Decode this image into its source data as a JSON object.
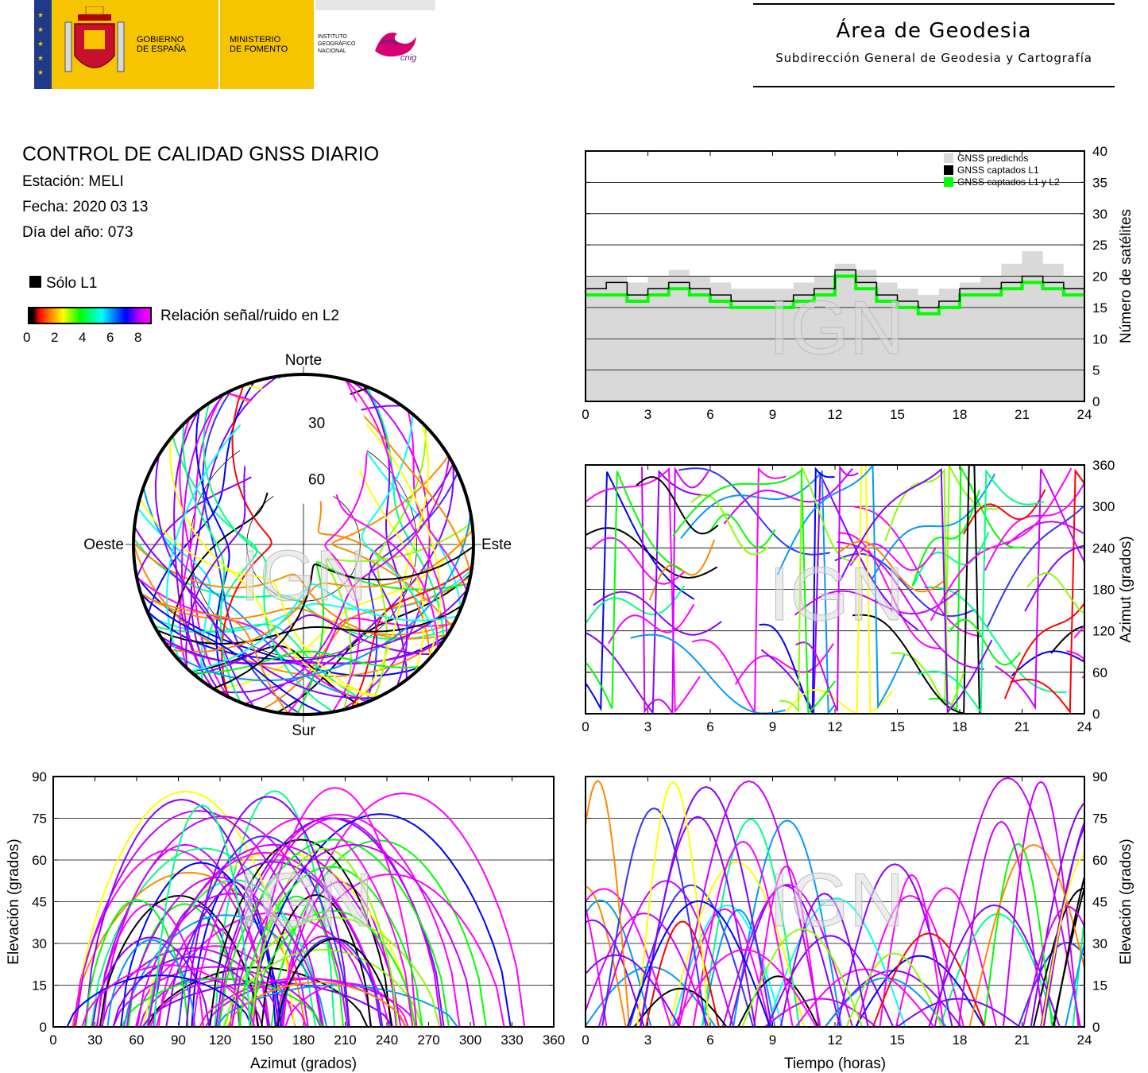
{
  "header": {
    "gov_line1": "GOBIERNO",
    "gov_line2": "DE ESPAÑA",
    "ministry_line1": "MINISTERIO",
    "ministry_line2": "DE FOMENTO",
    "institute_line1": "INSTITUTO",
    "institute_line2": "GEOGRÁFICO",
    "institute_line3": "NACIONAL",
    "cnig_logo_text": "cnig",
    "agency_title": "Área de Geodesia",
    "agency_subtitle": "Subdirección General de Geodesia y Cartografía"
  },
  "info": {
    "title": "CONTROL DE CALIDAD GNSS DIARIO",
    "station": "Estación: MELI",
    "date": "Fecha: 2020 03 13",
    "doy": "Día del año: 073"
  },
  "legend": {
    "l1_only": "Sólo L1",
    "snr_label": "Relación señal/ruido en L2",
    "snr_ticks": [
      "0",
      "2",
      "4",
      "6",
      "8"
    ],
    "colors": [
      "#000000",
      "#ff0000",
      "#ff8800",
      "#ffff00",
      "#00ff00",
      "#00ffff",
      "#0000ff",
      "#ff00ff"
    ]
  },
  "watermark": "IGN",
  "chart_data": [
    {
      "id": "satellite-count",
      "type": "area",
      "xlabel": "",
      "ylabel": "Número de satélites",
      "xlim": [
        0,
        24
      ],
      "ylim": [
        0,
        40
      ],
      "xticks": [
        "0",
        "3",
        "6",
        "9",
        "12",
        "15",
        "18",
        "21",
        "24"
      ],
      "yticks": [
        "0",
        "5",
        "10",
        "15",
        "20",
        "25",
        "30",
        "35",
        "40"
      ],
      "grid": "horizontal",
      "legend_position": "top-right",
      "series": [
        {
          "name": "GNSS predichos",
          "color": "#d9d9d9",
          "x": [
            0,
            1,
            2,
            3,
            4,
            5,
            6,
            7,
            8,
            9,
            10,
            11,
            12,
            13,
            14,
            15,
            16,
            17,
            18,
            19,
            20,
            21,
            22,
            23,
            24
          ],
          "values": [
            20,
            20,
            19,
            20,
            21,
            20,
            19,
            18,
            18,
            18,
            19,
            20,
            22,
            21,
            19,
            18,
            17,
            18,
            19,
            20,
            22,
            24,
            22,
            20,
            19
          ]
        },
        {
          "name": "GNSS captados L1",
          "color": "#000000",
          "x": [
            0,
            1,
            2,
            3,
            4,
            5,
            6,
            7,
            8,
            9,
            10,
            11,
            12,
            13,
            14,
            15,
            16,
            17,
            18,
            19,
            20,
            21,
            22,
            23,
            24
          ],
          "values": [
            18,
            19,
            17,
            18,
            19,
            18,
            17,
            16,
            16,
            16,
            17,
            18,
            21,
            19,
            17,
            16,
            15,
            16,
            18,
            18,
            19,
            20,
            19,
            18,
            17
          ]
        },
        {
          "name": "GNSS captados L1 y L2",
          "color": "#00ff00",
          "x": [
            0,
            1,
            2,
            3,
            4,
            5,
            6,
            7,
            8,
            9,
            10,
            11,
            12,
            13,
            14,
            15,
            16,
            17,
            18,
            19,
            20,
            21,
            22,
            23,
            24
          ],
          "values": [
            17,
            17,
            16,
            17,
            18,
            17,
            16,
            15,
            15,
            15,
            16,
            17,
            20,
            18,
            16,
            15,
            14,
            15,
            17,
            17,
            18,
            19,
            18,
            17,
            16
          ]
        }
      ]
    },
    {
      "id": "skyplot",
      "type": "scatter",
      "projection": "polar",
      "cardinal": {
        "north": "Norte",
        "south": "Sur",
        "east": "Este",
        "west": "Oeste"
      },
      "ring_labels": [
        "30",
        "60"
      ],
      "elevation_rings": [
        30,
        60
      ]
    },
    {
      "id": "azimuth-time",
      "type": "scatter",
      "xlabel": "",
      "ylabel": "Azimut (grados)",
      "xlim": [
        0,
        24
      ],
      "ylim": [
        0,
        360
      ],
      "xticks": [
        "0",
        "3",
        "6",
        "9",
        "12",
        "15",
        "18",
        "21",
        "24"
      ],
      "yticks": [
        "0",
        "60",
        "120",
        "180",
        "240",
        "300",
        "360"
      ],
      "grid": "horizontal"
    },
    {
      "id": "elevation-azimuth",
      "type": "scatter",
      "xlabel": "Azimut (grados)",
      "ylabel": "Elevación (grados)",
      "xlim": [
        0,
        360
      ],
      "ylim": [
        0,
        90
      ],
      "xticks": [
        "0",
        "30",
        "60",
        "90",
        "120",
        "150",
        "180",
        "210",
        "240",
        "270",
        "300",
        "330",
        "360"
      ],
      "yticks": [
        "0",
        "15",
        "30",
        "45",
        "60",
        "75",
        "90"
      ],
      "grid": "horizontal"
    },
    {
      "id": "elevation-time",
      "type": "scatter",
      "xlabel": "Tiempo (horas)",
      "ylabel": "Elevación (grados)",
      "xlim": [
        0,
        24
      ],
      "ylim": [
        0,
        90
      ],
      "xticks": [
        "0",
        "3",
        "6",
        "9",
        "12",
        "15",
        "18",
        "21",
        "24"
      ],
      "yticks": [
        "0",
        "15",
        "30",
        "45",
        "60",
        "75",
        "90"
      ],
      "grid": "horizontal"
    }
  ]
}
